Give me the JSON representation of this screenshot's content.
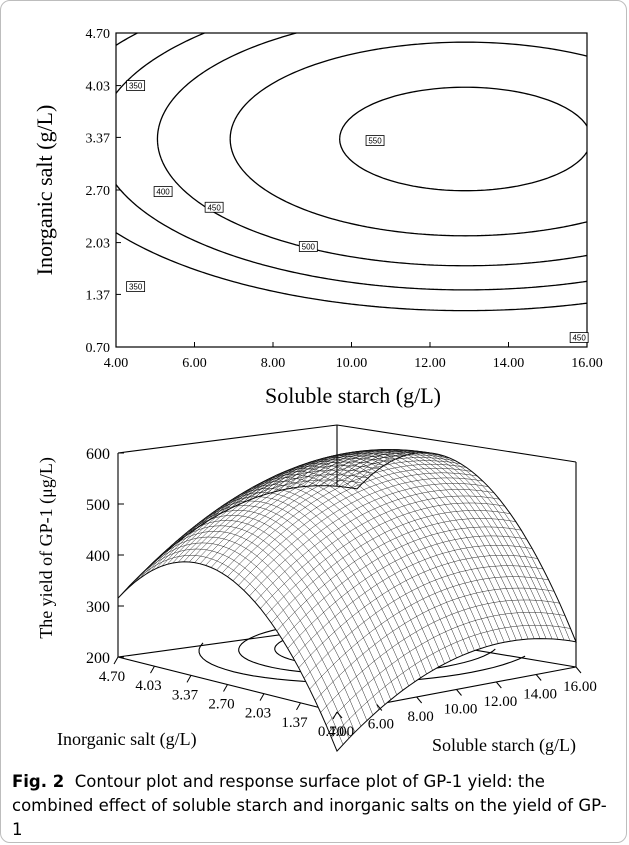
{
  "caption": {
    "label": "Fig. 2",
    "text": "Contour plot and response surface plot of GP-1 yield: the combined effect of soluble starch and inorganic salts on the yield of GP-1"
  },
  "chart_data": [
    {
      "type": "contour",
      "xlabel": "Soluble starch (g/L)",
      "ylabel": "Inorganic salt (g/L)",
      "xlim": [
        4.0,
        16.0
      ],
      "ylim": [
        0.7,
        4.7
      ],
      "xticks": [
        "4.00",
        "6.00",
        "8.00",
        "10.00",
        "12.00",
        "14.00",
        "16.00"
      ],
      "yticks": [
        "0.70",
        "1.37",
        "2.03",
        "2.70",
        "3.37",
        "4.03",
        "4.70"
      ],
      "contour_levels": [
        350,
        400,
        450,
        500,
        550
      ],
      "contour_labels": [
        {
          "text": "350",
          "x": 4.5,
          "y": 4.03
        },
        {
          "text": "400",
          "x": 5.2,
          "y": 2.68
        },
        {
          "text": "450",
          "x": 6.5,
          "y": 2.48
        },
        {
          "text": "500",
          "x": 8.9,
          "y": 1.98
        },
        {
          "text": "550",
          "x": 10.6,
          "y": 3.33
        },
        {
          "text": "350",
          "x": 4.5,
          "y": 1.47
        },
        {
          "text": "450",
          "x": 15.8,
          "y": 0.82
        }
      ],
      "optimum": {
        "x": 12.9,
        "y": 3.35
      }
    },
    {
      "type": "surface",
      "zlabel": "The yield of GP-1 (μg/L)",
      "xlabel": "Soluble starch (g/L)",
      "ylabel": "Inorganic salt (g/L)",
      "zticks": [
        "200",
        "300",
        "400",
        "500",
        "600"
      ],
      "zlim": [
        200,
        600
      ],
      "xticks": [
        "4.00",
        "6.00",
        "8.00",
        "10.00",
        "12.00",
        "14.00",
        "16.00"
      ],
      "yticks": [
        "4.70",
        "4.03",
        "3.37",
        "2.70",
        "2.03",
        "1.37",
        "0.70"
      ]
    }
  ]
}
